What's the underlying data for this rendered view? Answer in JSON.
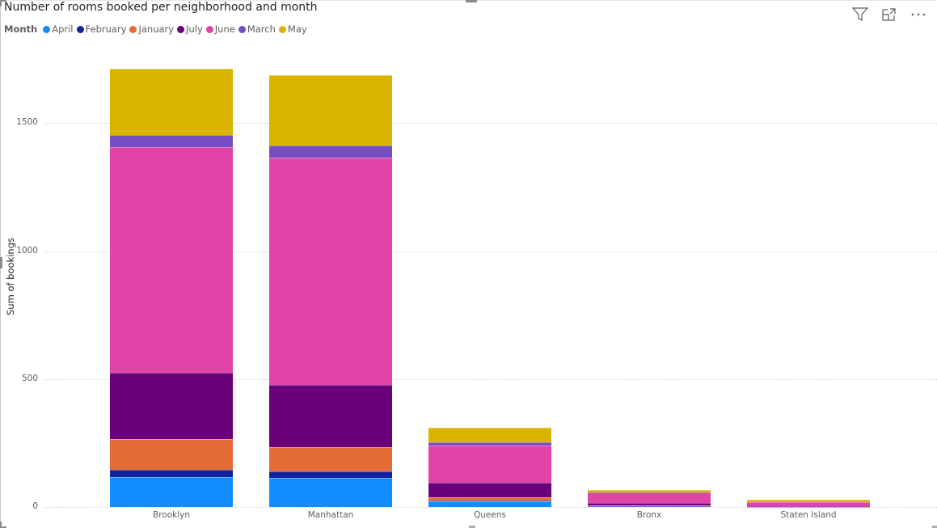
{
  "visual": {
    "title": "Number of rooms booked per neighborhood and month",
    "header_icons": [
      "filter-icon",
      "focus-mode-icon",
      "more-options-icon"
    ]
  },
  "legend": {
    "title": "Month",
    "items": [
      {
        "label": "April",
        "color": "#118DFF"
      },
      {
        "label": "February",
        "color": "#12239E"
      },
      {
        "label": "January",
        "color": "#E66C37"
      },
      {
        "label": "July",
        "color": "#6B007B"
      },
      {
        "label": "June",
        "color": "#E044A7"
      },
      {
        "label": "March",
        "color": "#744EC2"
      },
      {
        "label": "May",
        "color": "#D9B300"
      }
    ]
  },
  "axes": {
    "ylabel": "Sum of bookings",
    "yticks": [
      "0",
      "500",
      "1000",
      "1500"
    ],
    "xticks": [
      "Brooklyn",
      "Manhattan",
      "Queens",
      "Bronx",
      "Staten Island"
    ]
  },
  "chart_data": {
    "type": "bar",
    "stacked": true,
    "title": "Number of rooms booked per neighborhood and month",
    "xlabel": "",
    "ylabel": "Sum of bookings",
    "legend_title": "Month",
    "legend_position": "top-left",
    "grid": true,
    "ylim": [
      0,
      1790
    ],
    "yticks": [
      0,
      500,
      1000,
      1500
    ],
    "categories": [
      "Brooklyn",
      "Manhattan",
      "Queens",
      "Bronx",
      "Staten Island"
    ],
    "series": [
      {
        "name": "April",
        "color": "#118DFF",
        "values": [
          117,
          115,
          23,
          4,
          0
        ]
      },
      {
        "name": "February",
        "color": "#12239E",
        "values": [
          30,
          24,
          3,
          1,
          0
        ]
      },
      {
        "name": "January",
        "color": "#E66C37",
        "values": [
          119,
          95,
          14,
          3,
          1
        ]
      },
      {
        "name": "July",
        "color": "#6B007B",
        "values": [
          260,
          245,
          55,
          9,
          4
        ]
      },
      {
        "name": "June",
        "color": "#E044A7",
        "values": [
          882,
          886,
          146,
          40,
          16
        ]
      },
      {
        "name": "March",
        "color": "#744EC2",
        "values": [
          46,
          47,
          12,
          1,
          0
        ]
      },
      {
        "name": "May",
        "color": "#D9B300",
        "values": [
          258,
          276,
          56,
          8,
          8
        ]
      }
    ]
  }
}
